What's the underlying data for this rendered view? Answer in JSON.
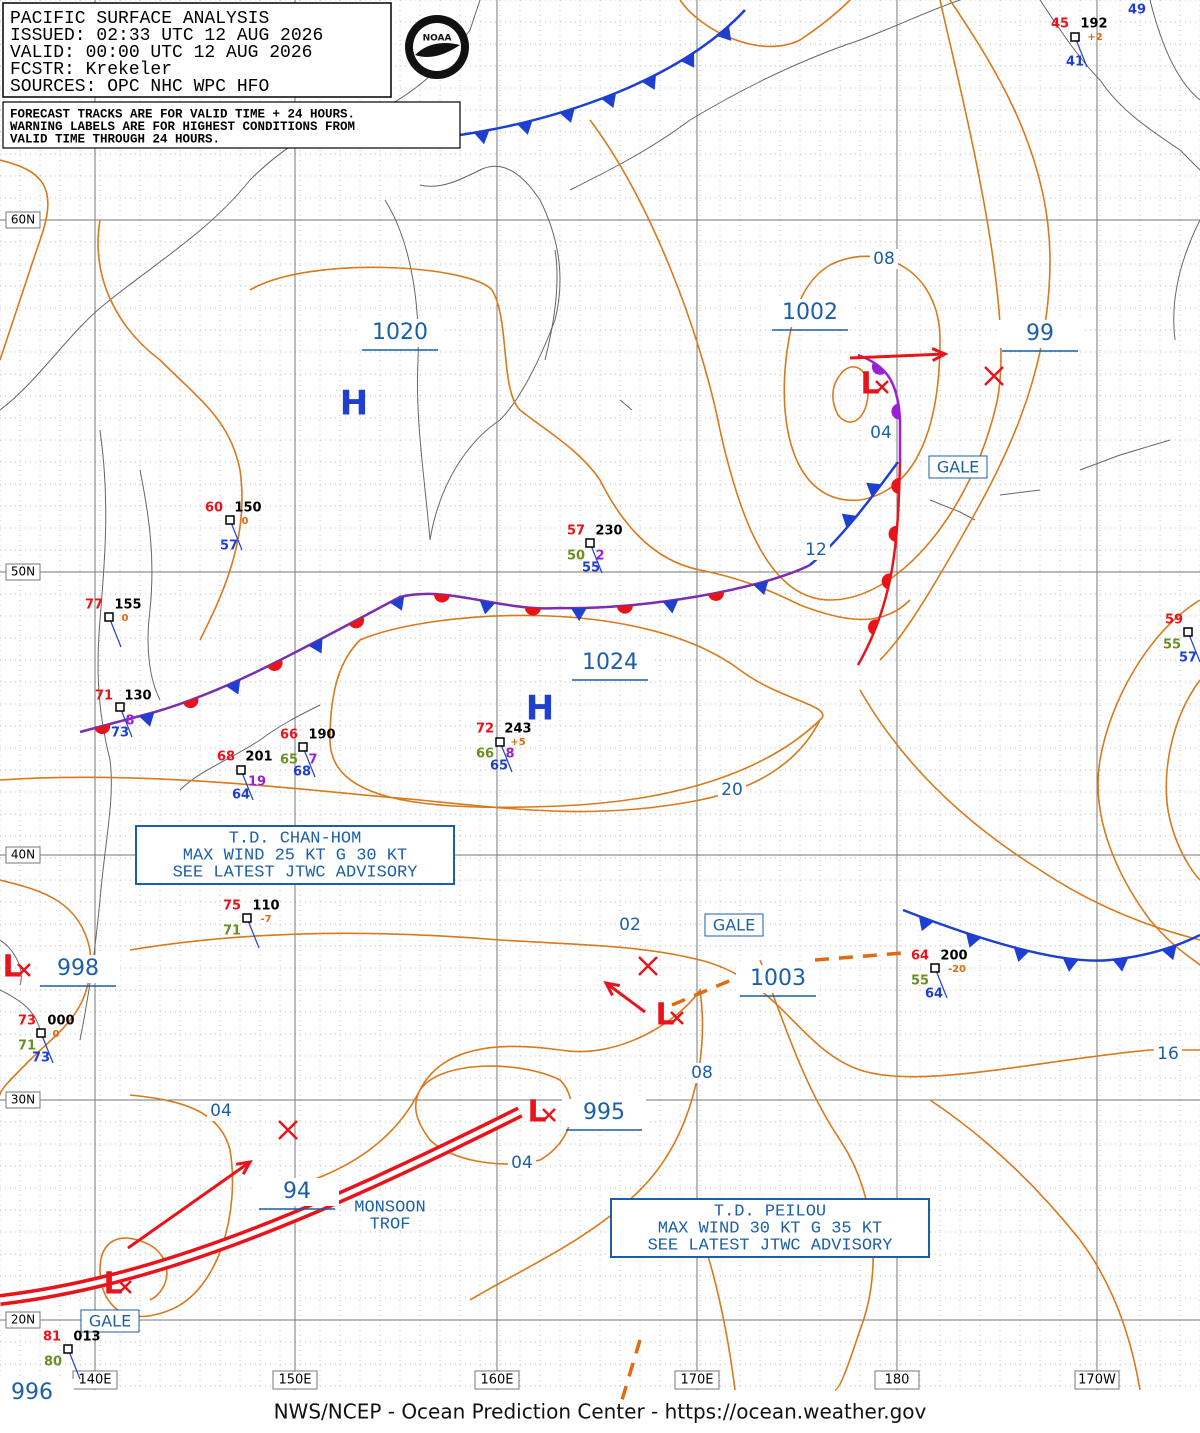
{
  "header": {
    "lines": [
      "PACIFIC SURFACE ANALYSIS",
      "ISSUED:  02:33 UTC 12 AUG 2026",
      "VALID:  00:00 UTC 12 AUG 2026",
      "FCSTR:  Krekeler",
      "SOURCES:  OPC NHC WPC HFO"
    ]
  },
  "logo": "NOAA",
  "notice": [
    "FORECAST TRACKS ARE FOR VALID TIME + 24 HOURS.",
    "WARNING LABELS ARE FOR HIGHEST CONDITIONS FROM",
    "VALID TIME THROUGH 24 HOURS."
  ],
  "latitudes": [
    "60N",
    "50N",
    "40N",
    "30N",
    "20N"
  ],
  "longitudes": [
    "140E",
    "150E",
    "160E",
    "170E",
    "180",
    "170W"
  ],
  "pressure_centers": [
    "1020",
    "1002",
    "99",
    "1024",
    "998",
    "1003",
    "995",
    "94",
    "996"
  ],
  "isobar_labels": [
    "08",
    "04",
    "12",
    "20",
    "02",
    "08",
    "16",
    "04",
    "04"
  ],
  "highs": [
    "H",
    "H"
  ],
  "lows": [
    "L",
    "L",
    "L",
    "L",
    "L"
  ],
  "warnings": [
    "GALE",
    "GALE",
    "GALE"
  ],
  "advisories": [
    {
      "lines": [
        "T.D. CHAN-HOM",
        "MAX WIND 25 KT G 30 KT",
        "SEE LATEST JTWC ADVISORY"
      ]
    },
    {
      "lines": [
        "T.D. PEILOU",
        "MAX WIND 30 KT G 35 KT",
        "SEE LATEST JTWC ADVISORY"
      ]
    }
  ],
  "monsoon_trough": [
    "MONSOON",
    "TROF"
  ],
  "stations": [
    {
      "values": [
        "45",
        "192",
        "+2",
        "41",
        "49"
      ]
    },
    {
      "values": [
        "60",
        "150",
        "0",
        "57"
      ]
    },
    {
      "values": [
        "57",
        "230",
        "50",
        "2",
        "55"
      ]
    },
    {
      "values": [
        "77",
        "155",
        "0"
      ]
    },
    {
      "values": [
        "71",
        "130",
        "73",
        "8"
      ]
    },
    {
      "values": [
        "68",
        "201",
        "19",
        "64"
      ]
    },
    {
      "values": [
        "66",
        "190",
        "65",
        "7",
        "68"
      ]
    },
    {
      "values": [
        "72",
        "243",
        "+5",
        "66",
        "8",
        "65"
      ]
    },
    {
      "values": [
        "75",
        "110",
        "-7",
        "71"
      ]
    },
    {
      "values": [
        "64",
        "200",
        "-20",
        "55",
        "64"
      ]
    },
    {
      "values": [
        "59",
        "55",
        "57"
      ]
    },
    {
      "values": [
        "73",
        "000",
        "0",
        "71",
        "73"
      ]
    },
    {
      "values": [
        "81",
        "013",
        "80"
      ]
    }
  ],
  "footer": "NWS/NCEP - Ocean Prediction Center - https://ocean.weather.gov"
}
